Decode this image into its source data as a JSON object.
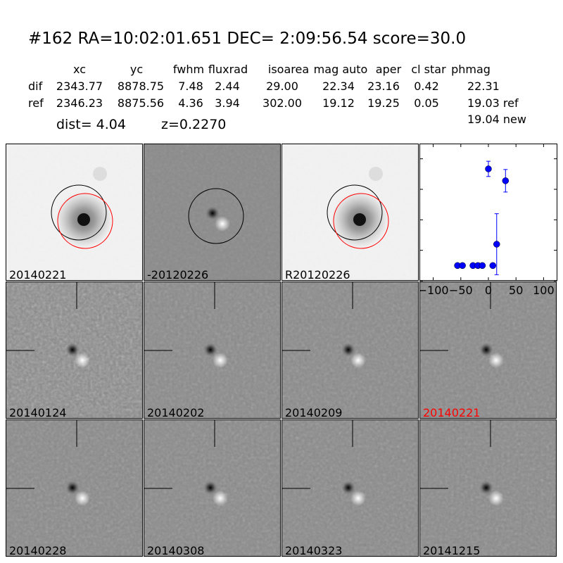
{
  "title": "#162   RA=10:02:01.651 DEC= 2:09:56.54      score=30.0",
  "table": {
    "headers": [
      "xc",
      "yc",
      "fwhm",
      "fluxrad",
      "isoarea",
      "mag auto",
      "aper",
      "cl star",
      "phmag"
    ],
    "rows": [
      {
        "label": "dif",
        "values": [
          "2343.77",
          "8878.75",
          "7.48",
          "2.44",
          "29.00",
          "22.34",
          "23.16",
          "0.42",
          "22.31"
        ]
      },
      {
        "label": "ref",
        "values": [
          "2346.23",
          "8875.56",
          "4.36",
          "3.94",
          "302.00",
          "19.12",
          "19.25",
          "0.05",
          "19.03 ref"
        ]
      }
    ],
    "extra_phmag": "19.04 new",
    "dist": "dist=  4.04",
    "z": "z=0.2270"
  },
  "stamps": [
    {
      "label": "20140221",
      "type": "new",
      "label_color": "#000000"
    },
    {
      "label": "-20120226",
      "type": "diff",
      "label_color": "#000000"
    },
    {
      "label": "R20120226",
      "type": "ref",
      "label_color": "#000000"
    },
    {
      "label": "20140124",
      "type": "epoch-noisy",
      "label_color": "#000000"
    },
    {
      "label": "20140202",
      "type": "epoch",
      "label_color": "#000000"
    },
    {
      "label": "20140209",
      "type": "epoch",
      "label_color": "#000000"
    },
    {
      "label": "20140221",
      "type": "epoch",
      "label_color": "#ff0000"
    },
    {
      "label": "20140228",
      "type": "epoch",
      "label_color": "#000000"
    },
    {
      "label": "20140308",
      "type": "epoch",
      "label_color": "#000000"
    },
    {
      "label": "20140323",
      "type": "epoch",
      "label_color": "#000000"
    },
    {
      "label": "20141215",
      "type": "epoch",
      "label_color": "#000000"
    }
  ],
  "chart_data": {
    "type": "scatter",
    "xlim": [
      -125,
      125
    ],
    "ylim": [
      26,
      21.5
    ],
    "y_inverted": true,
    "xticks": [
      -100,
      -50,
      0,
      50,
      100
    ],
    "yticks": [
      22,
      23,
      24,
      25,
      26
    ],
    "color": "#0000ff",
    "points": [
      {
        "x": -56,
        "y": 25.5,
        "err": 0.05
      },
      {
        "x": -47,
        "y": 25.5,
        "err": 0.05
      },
      {
        "x": -28,
        "y": 25.5,
        "err": 0.05
      },
      {
        "x": -19,
        "y": 25.5,
        "err": 0.05
      },
      {
        "x": -11,
        "y": 25.5,
        "err": 0.05
      },
      {
        "x": 8,
        "y": 25.5,
        "err": 0.05
      },
      {
        "x": 15,
        "y": 24.8,
        "err": 1.0
      },
      {
        "x": 0,
        "y": 22.33,
        "err": 0.25
      },
      {
        "x": 31,
        "y": 22.72,
        "err": 0.37
      }
    ]
  }
}
